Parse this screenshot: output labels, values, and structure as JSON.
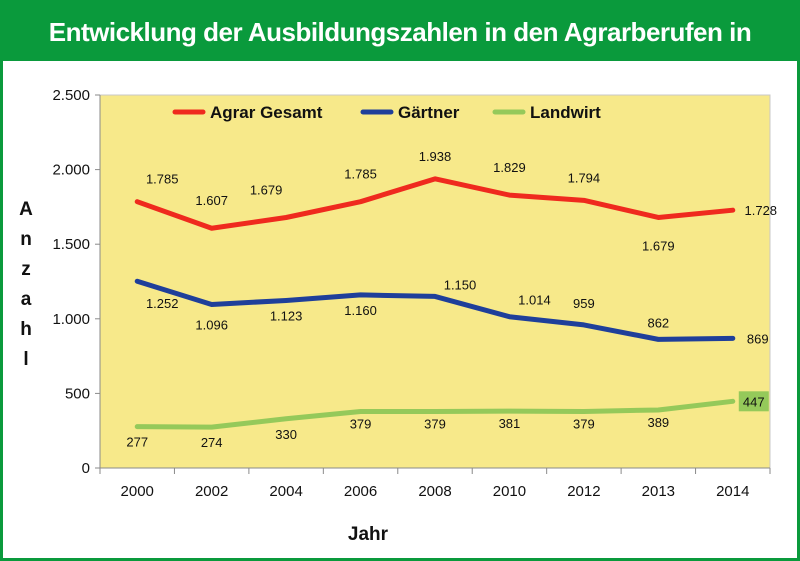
{
  "title": "Entwicklung der Ausbildungszahlen in den Agrarberufen in Hessen",
  "colors": {
    "frame": "#0a9a3c",
    "plot_bg": "#f7e98a",
    "gesamt": "#ef2a1e",
    "gaertner": "#1f3f9a",
    "landwirt": "#95c95a"
  },
  "chart_data": {
    "type": "line",
    "title": "Entwicklung der Ausbildungszahlen in den Agrarberufen in Hessen",
    "xlabel": "Jahr",
    "ylabel": "Anzahl",
    "categories": [
      "2000",
      "2002",
      "2004",
      "2006",
      "2008",
      "2010",
      "2012",
      "2013",
      "2014"
    ],
    "ylim": [
      0,
      2500
    ],
    "yticks": [
      0,
      500,
      1000,
      1500,
      2000,
      2500
    ],
    "ytick_labels": [
      "0",
      "500",
      "1.000",
      "1.500",
      "2.000",
      "2.500"
    ],
    "grid": false,
    "legend": "top",
    "series": [
      {
        "name": "Agrar Gesamt",
        "color": "#ef2a1e",
        "values": [
          1785,
          1607,
          1679,
          1785,
          1938,
          1829,
          1794,
          1679,
          1728
        ],
        "labels": [
          "1.785",
          "1.607",
          "1.679",
          "1.785",
          "1.938",
          "1.829",
          "1.794",
          "1.679",
          "1.728"
        ]
      },
      {
        "name": "Gärtner",
        "color": "#1f3f9a",
        "values": [
          1252,
          1096,
          1123,
          1160,
          1150,
          1014,
          959,
          862,
          869
        ],
        "labels": [
          "1.252",
          "1.096",
          "1.123",
          "1.160",
          "1.150",
          "1.014",
          "959",
          "862",
          "869"
        ]
      },
      {
        "name": "Landwirt",
        "color": "#95c95a",
        "values": [
          277,
          274,
          330,
          379,
          379,
          381,
          379,
          389,
          447
        ],
        "labels": [
          "277",
          "274",
          "330",
          "379",
          "379",
          "381",
          "379",
          "389",
          "447"
        ],
        "highlight_last": true
      }
    ]
  }
}
